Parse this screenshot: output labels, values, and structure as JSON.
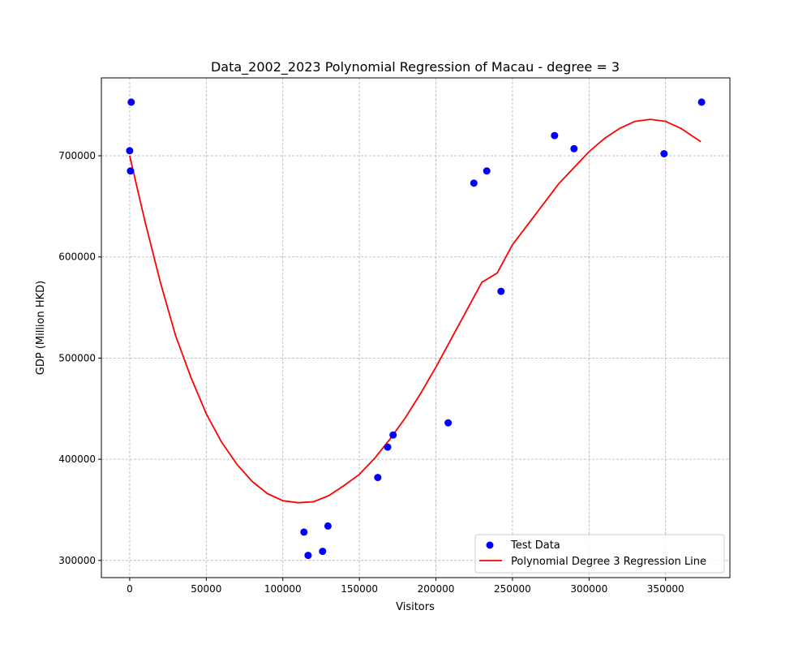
{
  "chart_data": {
    "type": "scatter",
    "title": "Data_2002_2023 Polynomial Regression of Macau - degree = 3",
    "xlabel": "Visitors",
    "ylabel": "GDP (Million HKD)",
    "xlim": [
      -18500,
      392000
    ],
    "ylim": [
      283000,
      777000
    ],
    "xticks": [
      0,
      50000,
      100000,
      150000,
      200000,
      250000,
      300000,
      350000
    ],
    "xtick_labels": [
      "0",
      "50000",
      "100000",
      "150000",
      "200000",
      "250000",
      "300000",
      "350000"
    ],
    "yticks": [
      300000,
      400000,
      500000,
      600000,
      700000
    ],
    "ytick_labels": [
      "300000",
      "400000",
      "500000",
      "600000",
      "700000"
    ],
    "grid": true,
    "legend_position": "bottom-right",
    "colors": {
      "points": "#0000ff",
      "line": "#ff0000"
    },
    "series": [
      {
        "name": "Test Data",
        "kind": "scatter",
        "points": [
          [
            0,
            705000
          ],
          [
            1000,
            753000
          ],
          [
            500,
            685000
          ],
          [
            113800,
            328000
          ],
          [
            116500,
            305000
          ],
          [
            126000,
            309000
          ],
          [
            129500,
            334000
          ],
          [
            162000,
            382000
          ],
          [
            168500,
            412000
          ],
          [
            172000,
            424000
          ],
          [
            208000,
            436000
          ],
          [
            224800,
            673000
          ],
          [
            233200,
            685000
          ],
          [
            242500,
            566000
          ],
          [
            277500,
            720000
          ],
          [
            290200,
            707000
          ],
          [
            349000,
            702000
          ],
          [
            373500,
            753000
          ]
        ]
      },
      {
        "name": "Polynomial Degree 3 Regression Line",
        "kind": "line",
        "points": [
          [
            0,
            700000
          ],
          [
            10000,
            635000
          ],
          [
            20000,
            575000
          ],
          [
            30000,
            522000
          ],
          [
            40000,
            481000
          ],
          [
            50000,
            445000
          ],
          [
            60000,
            417000
          ],
          [
            70000,
            395000
          ],
          [
            80000,
            378000
          ],
          [
            90000,
            366000
          ],
          [
            100000,
            359000
          ],
          [
            110000,
            357000
          ],
          [
            120000,
            358000
          ],
          [
            130000,
            364000
          ],
          [
            140000,
            374000
          ],
          [
            150000,
            385000
          ],
          [
            160000,
            401000
          ],
          [
            170000,
            420000
          ],
          [
            180000,
            441000
          ],
          [
            190000,
            465000
          ],
          [
            200000,
            491000
          ],
          [
            210000,
            519000
          ],
          [
            220000,
            547000
          ],
          [
            230000,
            575000
          ],
          [
            240000,
            584000
          ],
          [
            250000,
            612000
          ],
          [
            260000,
            632000
          ],
          [
            270000,
            652000
          ],
          [
            280000,
            672000
          ],
          [
            290000,
            688000
          ],
          [
            300000,
            704000
          ],
          [
            310000,
            717000
          ],
          [
            320000,
            727000
          ],
          [
            330000,
            734000
          ],
          [
            340000,
            736000
          ],
          [
            350000,
            734000
          ],
          [
            360000,
            727000
          ],
          [
            373000,
            714000
          ]
        ]
      }
    ]
  }
}
